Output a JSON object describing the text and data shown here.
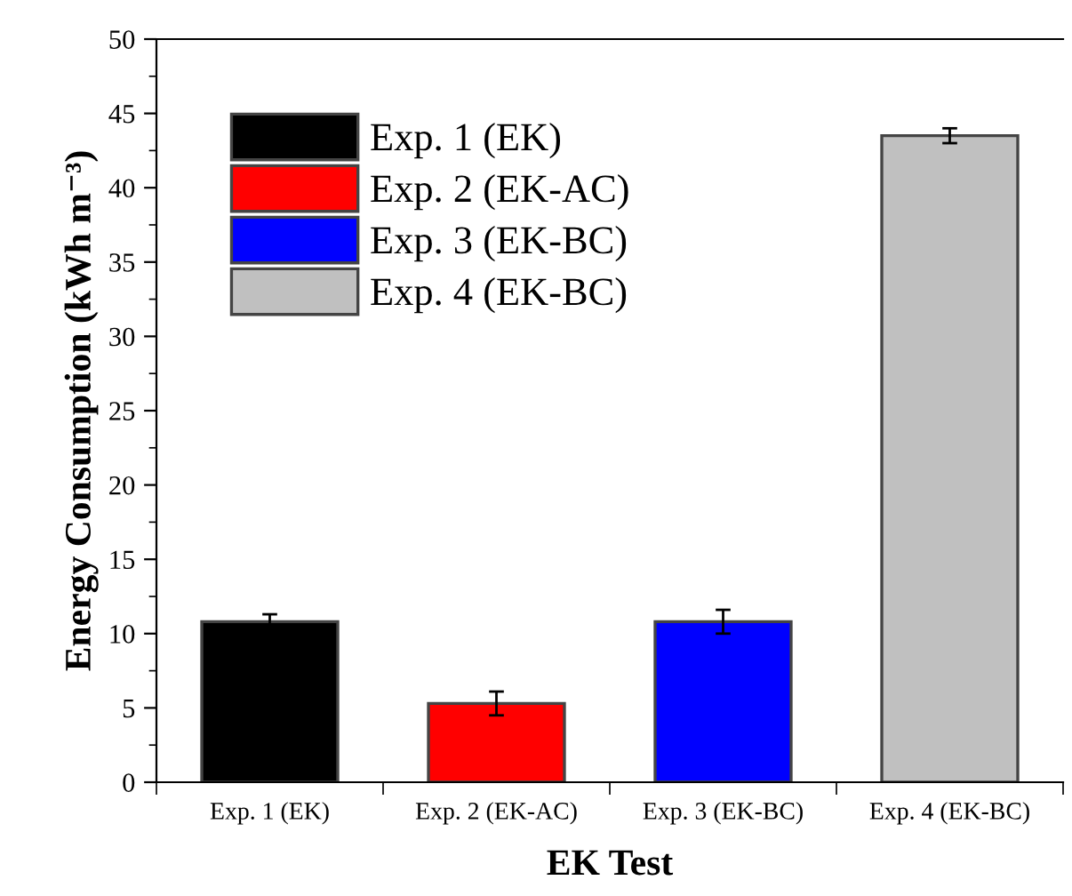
{
  "chart_data": {
    "type": "bar",
    "xlabel": "EK Test",
    "ylabel": "Energy Consumption (kWh m⁻³)",
    "categories": [
      "Exp. 1 (EK)",
      "Exp. 2 (EK-AC)",
      "Exp. 3 (EK-BC)",
      "Exp. 4 (EK-BC)"
    ],
    "series": [
      {
        "name": "Exp. 1 (EK)",
        "color": "#000000",
        "values": [
          10.8,
          null,
          null,
          null
        ],
        "errors": [
          0.5,
          null,
          null,
          null
        ]
      },
      {
        "name": "Exp. 2 (EK-AC)",
        "color": "#ff0000",
        "values": [
          null,
          5.3,
          null,
          null
        ],
        "errors": [
          null,
          0.8,
          null,
          null
        ]
      },
      {
        "name": "Exp. 3 (EK-BC)",
        "color": "#0000ff",
        "values": [
          null,
          null,
          10.8,
          null
        ],
        "errors": [
          null,
          null,
          0.8,
          null
        ]
      },
      {
        "name": "Exp. 4 (EK-BC)",
        "color": "#c0c0c0",
        "values": [
          null,
          null,
          null,
          43.5
        ],
        "errors": [
          null,
          null,
          null,
          0.5
        ]
      }
    ],
    "ylim": [
      0,
      50
    ],
    "yticks": [
      0,
      5,
      10,
      15,
      20,
      25,
      30,
      35,
      40,
      45,
      50
    ],
    "grid": false,
    "legend": "top left"
  }
}
